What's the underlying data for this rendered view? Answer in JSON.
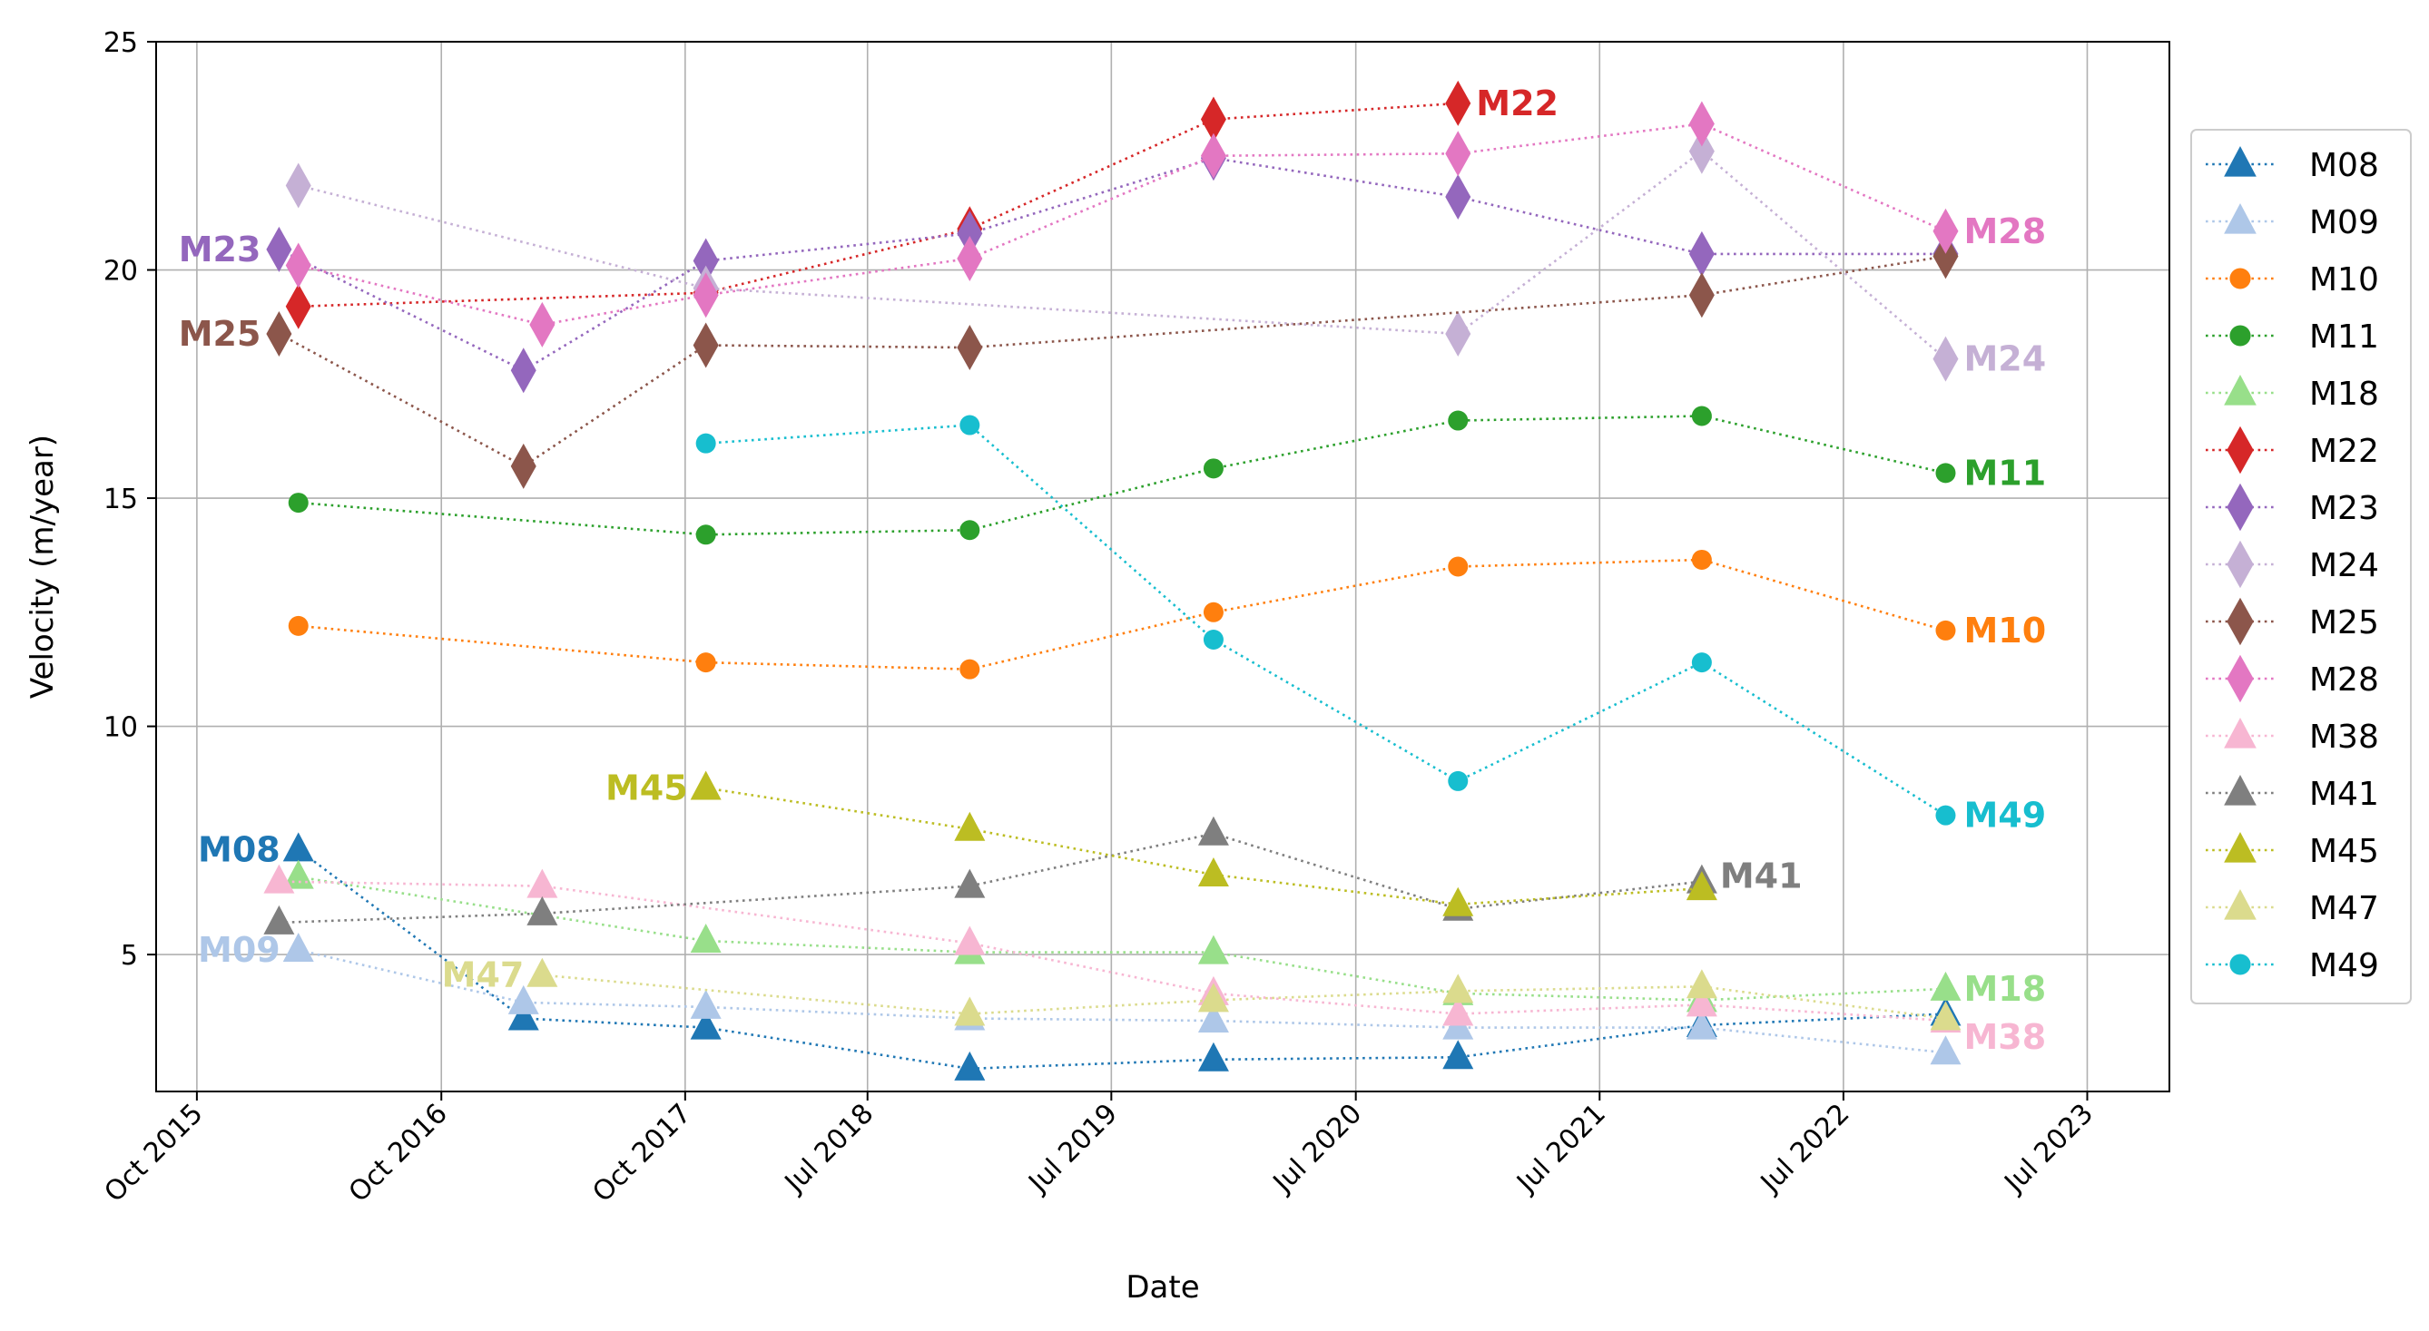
{
  "chart_data": {
    "type": "line",
    "xlabel": "Date",
    "ylabel": "Velocity (m/year)",
    "ylim": [
      2,
      25
    ],
    "yticks": [
      5,
      10,
      15,
      20,
      25
    ],
    "xlim": [
      "2015-08-01",
      "2023-11-01"
    ],
    "xticks": [
      {
        "date": "2015-10-01",
        "label": "Oct 2015"
      },
      {
        "date": "2016-10-01",
        "label": "Oct 2016"
      },
      {
        "date": "2017-10-01",
        "label": "Oct 2017"
      },
      {
        "date": "2018-07-01",
        "label": "Jul 2018"
      },
      {
        "date": "2019-07-01",
        "label": "Jul 2019"
      },
      {
        "date": "2020-07-01",
        "label": "Jul 2020"
      },
      {
        "date": "2021-07-01",
        "label": "Jul 2021"
      },
      {
        "date": "2022-07-01",
        "label": "Jul 2022"
      },
      {
        "date": "2023-07-01",
        "label": "Jul 2023"
      }
    ],
    "grid": true,
    "legend_position": "outside-right",
    "series": [
      {
        "name": "M08",
        "color": "#1f77b4",
        "marker": "triangle",
        "dates": [
          "2016-03-01",
          "2017-02-01",
          "2017-11-01",
          "2018-12-01",
          "2019-12-01",
          "2020-12-01",
          "2021-12-01",
          "2022-12-01"
        ],
        "values": [
          7.3,
          3.6,
          3.4,
          2.5,
          2.7,
          2.75,
          3.45,
          3.7
        ],
        "label": "M08"
      },
      {
        "name": "M09",
        "color": "#aec7e8",
        "marker": "triangle",
        "dates": [
          "2016-03-01",
          "2017-02-01",
          "2017-11-01",
          "2018-12-01",
          "2019-12-01",
          "2020-12-01",
          "2021-12-01",
          "2022-12-01"
        ],
        "values": [
          5.1,
          3.95,
          3.85,
          3.6,
          3.55,
          3.4,
          3.4,
          2.85
        ],
        "label": "M09"
      },
      {
        "name": "M10",
        "color": "#ff7f0e",
        "marker": "circle",
        "dates": [
          "2016-03-01",
          "2017-11-01",
          "2018-12-01",
          "2019-12-01",
          "2020-12-01",
          "2021-12-01",
          "2022-12-01"
        ],
        "values": [
          12.2,
          11.4,
          11.25,
          12.5,
          13.5,
          13.65,
          12.1
        ],
        "label": "M10"
      },
      {
        "name": "M11",
        "color": "#2ca02c",
        "marker": "circle",
        "dates": [
          "2016-03-01",
          "2017-11-01",
          "2018-12-01",
          "2019-12-01",
          "2020-12-01",
          "2021-12-01",
          "2022-12-01"
        ],
        "values": [
          14.9,
          14.2,
          14.3,
          15.65,
          16.7,
          16.8,
          15.55
        ],
        "label": "M11"
      },
      {
        "name": "M18",
        "color": "#98df8a",
        "marker": "triangle",
        "dates": [
          "2016-03-01",
          "2017-11-01",
          "2018-12-01",
          "2019-12-01",
          "2020-12-01",
          "2021-12-01",
          "2022-12-01"
        ],
        "values": [
          6.7,
          5.3,
          5.05,
          5.05,
          4.15,
          4.0,
          4.25
        ],
        "label": "M18"
      },
      {
        "name": "M22",
        "color": "#d62728",
        "marker": "diamond",
        "dates": [
          "2016-03-01",
          "2017-11-01",
          "2018-12-01",
          "2019-12-01",
          "2020-12-01"
        ],
        "values": [
          19.2,
          19.5,
          20.9,
          23.3,
          23.65
        ],
        "label": "M22"
      },
      {
        "name": "M23",
        "color": "#9467bd",
        "marker": "diamond",
        "dates": [
          "2016-02-01",
          "2017-02-01",
          "2017-11-01",
          "2018-12-01",
          "2019-12-01",
          "2020-12-01",
          "2021-12-01",
          "2022-12-01"
        ],
        "values": [
          20.45,
          17.8,
          20.2,
          20.8,
          22.45,
          21.6,
          20.35,
          20.35
        ],
        "label": "M23"
      },
      {
        "name": "M24",
        "color": "#c5b0d5",
        "marker": "diamond",
        "dates": [
          "2016-03-01",
          "2017-11-01",
          "2020-12-01",
          "2021-12-01",
          "2022-12-01"
        ],
        "values": [
          21.85,
          19.6,
          18.6,
          22.6,
          18.05
        ],
        "label": "M24"
      },
      {
        "name": "M25",
        "color": "#8c564b",
        "marker": "diamond",
        "dates": [
          "2016-02-01",
          "2017-02-01",
          "2017-11-01",
          "2018-12-01",
          "2021-12-01",
          "2022-12-01"
        ],
        "values": [
          18.6,
          15.7,
          18.35,
          18.3,
          19.45,
          20.3
        ],
        "label": "M25"
      },
      {
        "name": "M28",
        "color": "#e377c2",
        "marker": "diamond",
        "dates": [
          "2016-03-01",
          "2017-03-01",
          "2017-11-01",
          "2018-12-01",
          "2019-12-01",
          "2020-12-01",
          "2021-12-01",
          "2022-12-01"
        ],
        "values": [
          20.1,
          18.8,
          19.45,
          20.25,
          22.5,
          22.55,
          23.2,
          20.85
        ],
        "label": "M28"
      },
      {
        "name": "M38",
        "color": "#f7b6d2",
        "marker": "triangle",
        "dates": [
          "2016-02-01",
          "2017-03-01",
          "2018-12-01",
          "2019-12-01",
          "2020-12-01",
          "2021-12-01",
          "2022-12-01"
        ],
        "values": [
          6.6,
          6.5,
          5.25,
          4.15,
          3.7,
          3.9,
          3.55
        ],
        "label": "M38"
      },
      {
        "name": "M41",
        "color": "#7f7f7f",
        "marker": "triangle",
        "dates": [
          "2016-02-01",
          "2017-03-01",
          "2018-12-01",
          "2019-12-01",
          "2020-12-01",
          "2021-12-01"
        ],
        "values": [
          5.7,
          5.9,
          6.5,
          7.65,
          6.0,
          6.6
        ],
        "label": "M41"
      },
      {
        "name": "M45",
        "color": "#bcbd22",
        "marker": "triangle",
        "dates": [
          "2017-11-01",
          "2018-12-01",
          "2019-12-01",
          "2020-12-01",
          "2021-12-01"
        ],
        "values": [
          8.65,
          7.75,
          6.75,
          6.1,
          6.45
        ],
        "label": "M45"
      },
      {
        "name": "M47",
        "color": "#dbdb8d",
        "marker": "triangle",
        "dates": [
          "2017-03-01",
          "2018-12-01",
          "2019-12-01",
          "2020-12-01",
          "2021-12-01",
          "2022-12-01"
        ],
        "values": [
          4.55,
          3.7,
          4.0,
          4.2,
          4.3,
          3.6
        ],
        "label": "M47"
      },
      {
        "name": "M49",
        "color": "#17becf",
        "marker": "circle",
        "dates": [
          "2017-11-01",
          "2018-12-01",
          "2019-12-01",
          "2020-12-01",
          "2021-12-01",
          "2022-12-01"
        ],
        "values": [
          16.2,
          16.6,
          11.9,
          8.8,
          11.4,
          8.05
        ],
        "label": "M49"
      }
    ]
  }
}
